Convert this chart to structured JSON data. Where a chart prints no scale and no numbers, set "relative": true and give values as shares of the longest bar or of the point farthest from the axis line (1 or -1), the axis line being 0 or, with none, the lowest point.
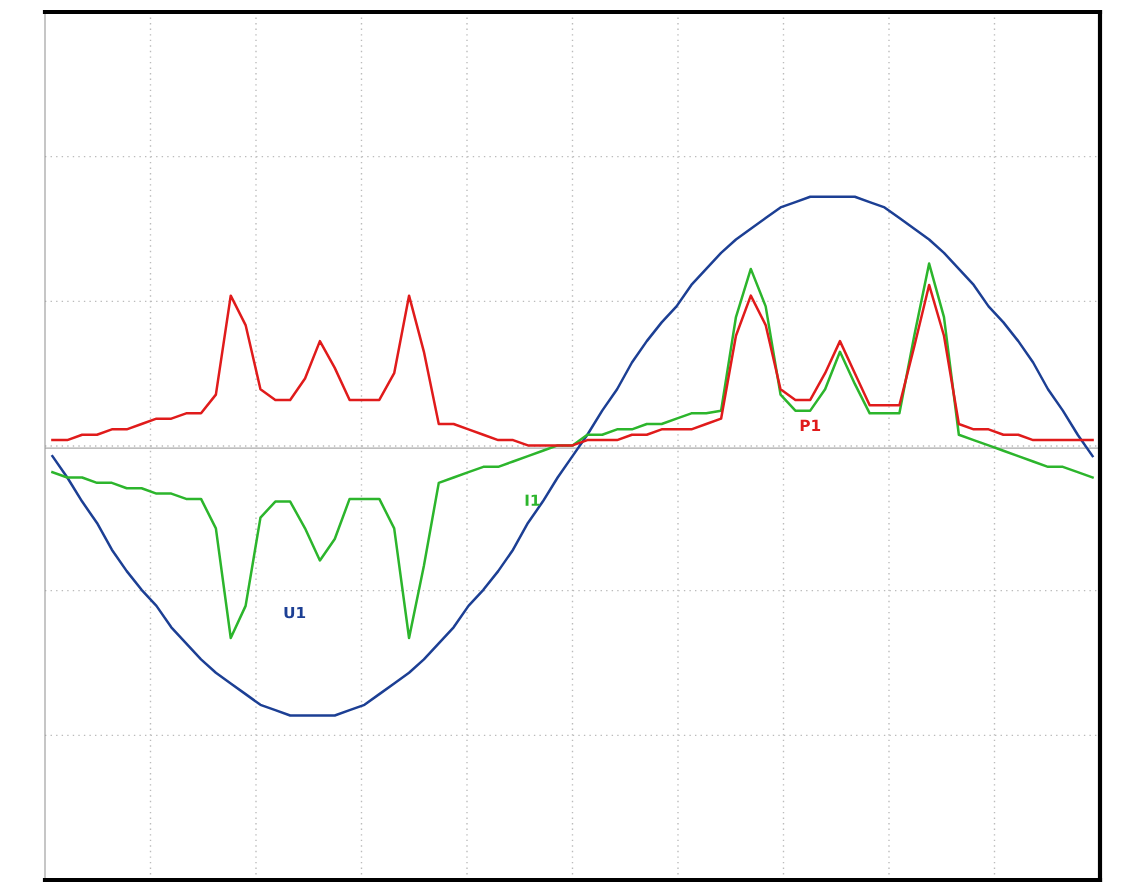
{
  "chart_data": {
    "type": "line",
    "relative": true,
    "grid": true,
    "legend": false,
    "line_style": "solid",
    "marker": "none",
    "categories": [
      null,
      null,
      null,
      null,
      null,
      null,
      null,
      null,
      null,
      null,
      null,
      null,
      null,
      null,
      null,
      null,
      null,
      null,
      null,
      null,
      null,
      null,
      null,
      null,
      null,
      null,
      null,
      null,
      null,
      null,
      null,
      null,
      null,
      null,
      null,
      null,
      null,
      null,
      null,
      null,
      null,
      null,
      null,
      null,
      null,
      null,
      null,
      null,
      null,
      null,
      null,
      null,
      null,
      null,
      null,
      null,
      null,
      null,
      null,
      null,
      null,
      null,
      null,
      null,
      null,
      null,
      null,
      null,
      null,
      null,
      null
    ],
    "series": [
      {
        "name": "U1",
        "color": "#1c3f94",
        "values": [
          -0.03,
          -0.11,
          -0.2,
          -0.28,
          -0.38,
          -0.46,
          -0.53,
          -0.59,
          -0.67,
          -0.73,
          -0.79,
          -0.84,
          -0.88,
          -0.92,
          -0.96,
          -0.98,
          -1,
          -1,
          -1,
          -1,
          -0.98,
          -0.96,
          -0.92,
          -0.88,
          -0.84,
          -0.79,
          -0.73,
          -0.67,
          -0.59,
          -0.53,
          -0.46,
          -0.38,
          -0.28,
          -0.2,
          -0.11,
          -0.03,
          0.05,
          0.14,
          0.22,
          0.32,
          0.4,
          0.47,
          0.53,
          0.61,
          0.67,
          0.73,
          0.78,
          0.82,
          0.86,
          0.9,
          0.92,
          0.94,
          0.94,
          0.94,
          0.94,
          0.92,
          0.9,
          0.86,
          0.82,
          0.78,
          0.73,
          0.67,
          0.61,
          0.53,
          0.47,
          0.4,
          0.32,
          0.22,
          0.14,
          0.05,
          -0.03
        ]
      },
      {
        "name": "I1",
        "color": "#2cb52c",
        "values": [
          -0.09,
          -0.11,
          -0.11,
          -0.13,
          -0.13,
          -0.15,
          -0.15,
          -0.17,
          -0.17,
          -0.19,
          -0.19,
          -0.3,
          -0.71,
          -0.59,
          -0.26,
          -0.2,
          -0.2,
          -0.3,
          -0.42,
          -0.34,
          -0.19,
          -0.19,
          -0.19,
          -0.3,
          -0.71,
          -0.44,
          -0.13,
          -0.11,
          -0.09,
          -0.07,
          -0.07,
          -0.05,
          -0.03,
          -0.01,
          0.01,
          0.01,
          0.05,
          0.05,
          0.07,
          0.07,
          0.09,
          0.09,
          0.11,
          0.13,
          0.13,
          0.14,
          0.49,
          0.67,
          0.53,
          0.2,
          0.14,
          0.14,
          0.22,
          0.36,
          0.24,
          0.13,
          0.13,
          0.13,
          0.42,
          0.69,
          0.49,
          0.05,
          0.03,
          0.01,
          -0.01,
          -0.03,
          -0.05,
          -0.07,
          -0.07,
          -0.09,
          -0.11
        ]
      },
      {
        "name": "P1",
        "color": "#e01b1b",
        "values": [
          0.03,
          0.03,
          0.05,
          0.05,
          0.07,
          0.07,
          0.09,
          0.11,
          0.11,
          0.13,
          0.13,
          0.2,
          0.57,
          0.46,
          0.22,
          0.18,
          0.18,
          0.26,
          0.4,
          0.3,
          0.18,
          0.18,
          0.18,
          0.28,
          0.57,
          0.36,
          0.09,
          0.09,
          0.07,
          0.05,
          0.03,
          0.03,
          0.01,
          0.01,
          0.01,
          0.01,
          0.03,
          0.03,
          0.03,
          0.05,
          0.05,
          0.07,
          0.07,
          0.07,
          0.09,
          0.11,
          0.42,
          0.57,
          0.46,
          0.22,
          0.18,
          0.18,
          0.28,
          0.4,
          0.28,
          0.16,
          0.16,
          0.16,
          0.38,
          0.61,
          0.42,
          0.09,
          0.07,
          0.07,
          0.05,
          0.05,
          0.03,
          0.03,
          0.03,
          0.03,
          0.03
        ]
      }
    ]
  }
}
